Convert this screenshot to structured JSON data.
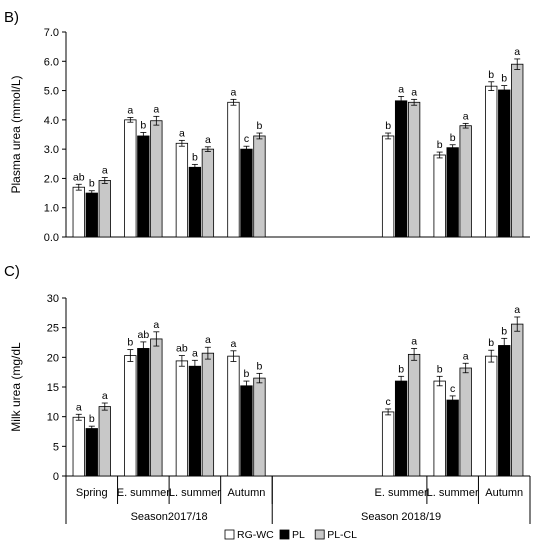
{
  "colors": {
    "RG-WC": "#ffffff",
    "PL": "#000000",
    "PL-CL": "#c8c8c8",
    "axis": "#000000",
    "error_bar": "#000000"
  },
  "legend": {
    "position": "bottom-center",
    "entries": [
      "RG-WC",
      "PL",
      "PL-CL"
    ]
  },
  "chart_data": [
    {
      "type": "bar",
      "panel_label": "B)",
      "ylabel": "Plasma urea (mmol/L)",
      "ylim": [
        0,
        7
      ],
      "yticks": [
        "0.0",
        "1.0",
        "2.0",
        "3.0",
        "4.0",
        "5.0",
        "6.0",
        "7.0"
      ],
      "grid": false,
      "group_slots": 9,
      "groups": [
        {
          "slot": 0,
          "label": "Spring",
          "season": "Season2017/18"
        },
        {
          "slot": 1,
          "label": "E. summer",
          "season": "Season2017/18"
        },
        {
          "slot": 2,
          "label": "L. summer",
          "season": "Season2017/18"
        },
        {
          "slot": 3,
          "label": "Autumn",
          "season": "Season2017/18"
        },
        {
          "slot": 6,
          "label": "E. summer",
          "season": "Season 2018/19"
        },
        {
          "slot": 7,
          "label": "L. summer",
          "season": "Season 2018/19"
        },
        {
          "slot": 8,
          "label": "Autumn",
          "season": "Season 2018/19"
        }
      ],
      "series": [
        {
          "name": "RG-WC",
          "values": [
            1.7,
            4.0,
            3.2,
            4.6,
            3.45,
            2.8,
            5.15
          ],
          "errors": [
            0.1,
            0.08,
            0.1,
            0.1,
            0.1,
            0.1,
            0.15
          ],
          "letters": [
            "ab",
            "a",
            "a",
            "a",
            "b",
            "b",
            "b"
          ]
        },
        {
          "name": "PL",
          "values": [
            1.5,
            3.45,
            2.38,
            3.0,
            4.65,
            3.05,
            5.02
          ],
          "errors": [
            0.08,
            0.12,
            0.1,
            0.1,
            0.15,
            0.1,
            0.15
          ],
          "letters": [
            "b",
            "b",
            "b",
            "c",
            "a",
            "b",
            "b"
          ]
        },
        {
          "name": "PL-CL",
          "values": [
            1.93,
            3.97,
            3.0,
            3.45,
            4.6,
            3.8,
            5.9
          ],
          "errors": [
            0.1,
            0.15,
            0.08,
            0.1,
            0.1,
            0.08,
            0.18
          ],
          "letters": [
            "a",
            "a",
            "a",
            "b",
            "a",
            "a",
            "a"
          ]
        }
      ]
    },
    {
      "type": "bar",
      "panel_label": "C)",
      "ylabel": "Milk urea (mg/dL",
      "ylim": [
        0,
        30
      ],
      "yticks": [
        "0",
        "5",
        "10",
        "15",
        "20",
        "25",
        "30"
      ],
      "grid": false,
      "group_slots": 9,
      "groups": [
        {
          "slot": 0,
          "label": "Spring",
          "season": "Season2017/18"
        },
        {
          "slot": 1,
          "label": "E. summer",
          "season": "Season2017/18"
        },
        {
          "slot": 2,
          "label": "L. summer",
          "season": "Season2017/18"
        },
        {
          "slot": 3,
          "label": "Autumn",
          "season": "Season2017/18"
        },
        {
          "slot": 6,
          "label": "E. summer",
          "season": "Season 2018/19"
        },
        {
          "slot": 7,
          "label": "L. summer",
          "season": "Season 2018/19"
        },
        {
          "slot": 8,
          "label": "Autumn",
          "season": "Season 2018/19"
        }
      ],
      "series": [
        {
          "name": "RG-WC",
          "values": [
            9.9,
            20.3,
            19.4,
            20.2,
            10.8,
            16.0,
            20.2
          ],
          "errors": [
            0.5,
            1.0,
            0.9,
            0.9,
            0.5,
            0.8,
            1.0
          ],
          "letters": [
            "a",
            "b",
            "ab",
            "a",
            "c",
            "b",
            "b"
          ]
        },
        {
          "name": "PL",
          "values": [
            8.0,
            21.5,
            18.5,
            15.2,
            16.0,
            12.8,
            22.0
          ],
          "errors": [
            0.4,
            1.1,
            1.0,
            0.8,
            0.8,
            0.7,
            1.2
          ],
          "letters": [
            "b",
            "ab",
            "a",
            "b",
            "b",
            "c",
            "b"
          ]
        },
        {
          "name": "PL-CL",
          "values": [
            11.7,
            23.1,
            20.7,
            16.5,
            20.5,
            18.2,
            25.6
          ],
          "errors": [
            0.6,
            1.2,
            1.0,
            0.8,
            1.0,
            0.8,
            1.2
          ],
          "letters": [
            "a",
            "a",
            "a",
            "b",
            "a",
            "a",
            "a"
          ]
        }
      ]
    }
  ],
  "x_axis": {
    "seasons": [
      {
        "label": "Season2017/18",
        "slots": [
          0,
          3
        ]
      },
      {
        "label": "Season 2018/19",
        "slots": [
          4,
          8
        ]
      }
    ]
  }
}
